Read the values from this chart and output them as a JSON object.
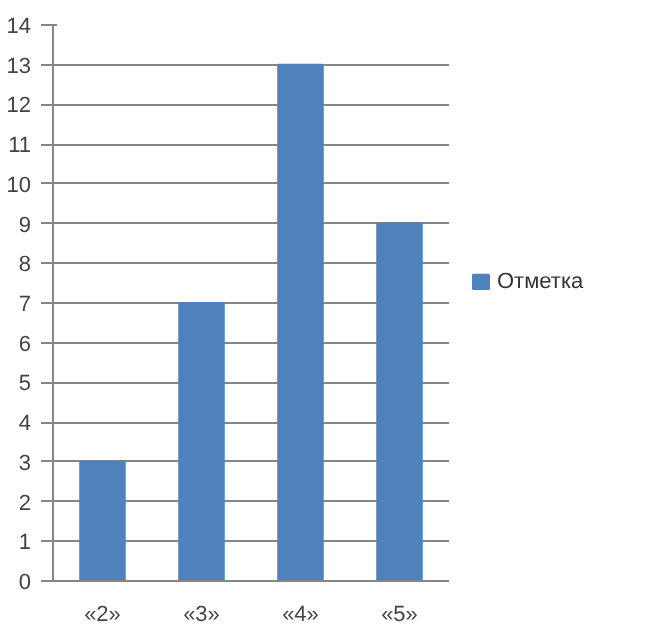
{
  "chart_data": {
    "type": "bar",
    "categories": [
      "«2»",
      "«3»",
      "«4»",
      "«5»"
    ],
    "series": [
      {
        "name": "Отметка",
        "color": "#4f81bd",
        "values": [
          3,
          7,
          13,
          9
        ]
      }
    ],
    "ylim": [
      0,
      14
    ],
    "yticks": [
      0,
      1,
      2,
      3,
      4,
      5,
      6,
      7,
      8,
      9,
      10,
      11,
      12,
      13,
      14
    ],
    "grid": "y",
    "legend": "right"
  }
}
